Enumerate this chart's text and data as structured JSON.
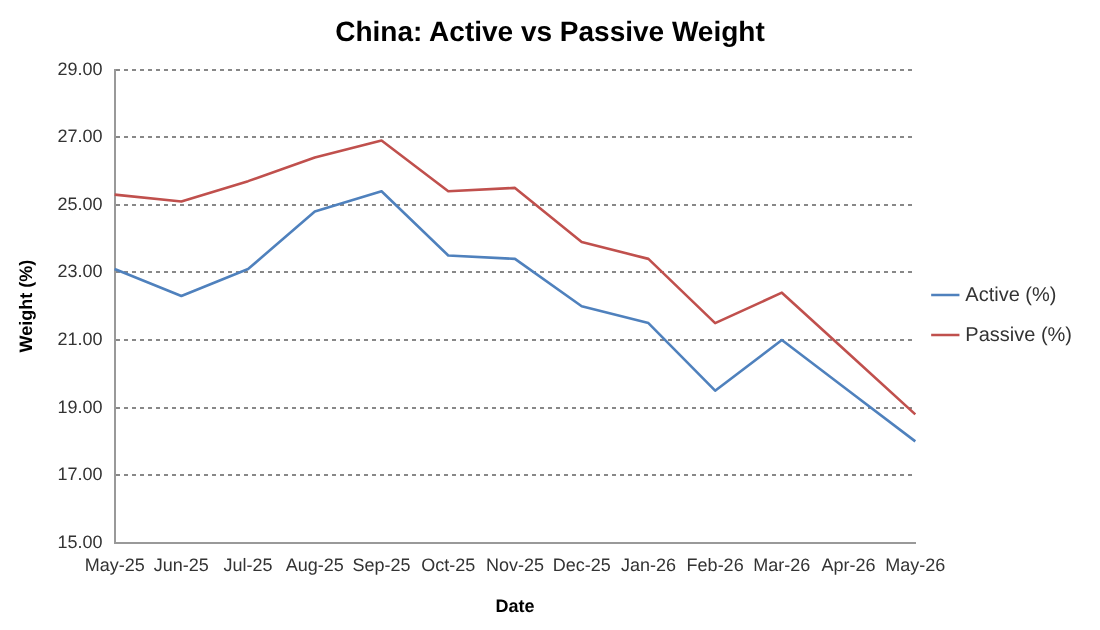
{
  "chart_data": {
    "type": "line",
    "title": "China: Active vs Passive Weight",
    "xlabel": "Date",
    "ylabel": "Weight (%)",
    "categories": [
      "May-25",
      "Jun-25",
      "Jul-25",
      "Aug-25",
      "Sep-25",
      "Oct-25",
      "Nov-25",
      "Dec-25",
      "Jan-26",
      "Feb-26",
      "Mar-26",
      "Apr-26",
      "May-26"
    ],
    "series": [
      {
        "name": "Active (%)",
        "color": "#4f81bd",
        "values": [
          23.1,
          22.3,
          23.1,
          24.8,
          25.4,
          23.5,
          23.4,
          22.0,
          21.5,
          19.5,
          21.0,
          19.5,
          18.0
        ]
      },
      {
        "name": "Passive (%)",
        "color": "#c0504d",
        "values": [
          25.3,
          25.1,
          25.7,
          26.4,
          26.9,
          25.4,
          25.5,
          23.9,
          23.4,
          21.5,
          22.4,
          20.6,
          18.8
        ]
      }
    ],
    "ylim": [
      15,
      29
    ],
    "yticks": [
      {
        "value": 15,
        "label": "15.00"
      },
      {
        "value": 17,
        "label": "17.00"
      },
      {
        "value": 19,
        "label": "19.00"
      },
      {
        "value": 21,
        "label": "21.00"
      },
      {
        "value": 23,
        "label": "23.00"
      },
      {
        "value": 25,
        "label": "25.00"
      },
      {
        "value": 27,
        "label": "27.00"
      },
      {
        "value": 29,
        "label": "29.00"
      }
    ],
    "grid": "y",
    "legend": "right",
    "marker": "none",
    "line_style": "solid"
  }
}
